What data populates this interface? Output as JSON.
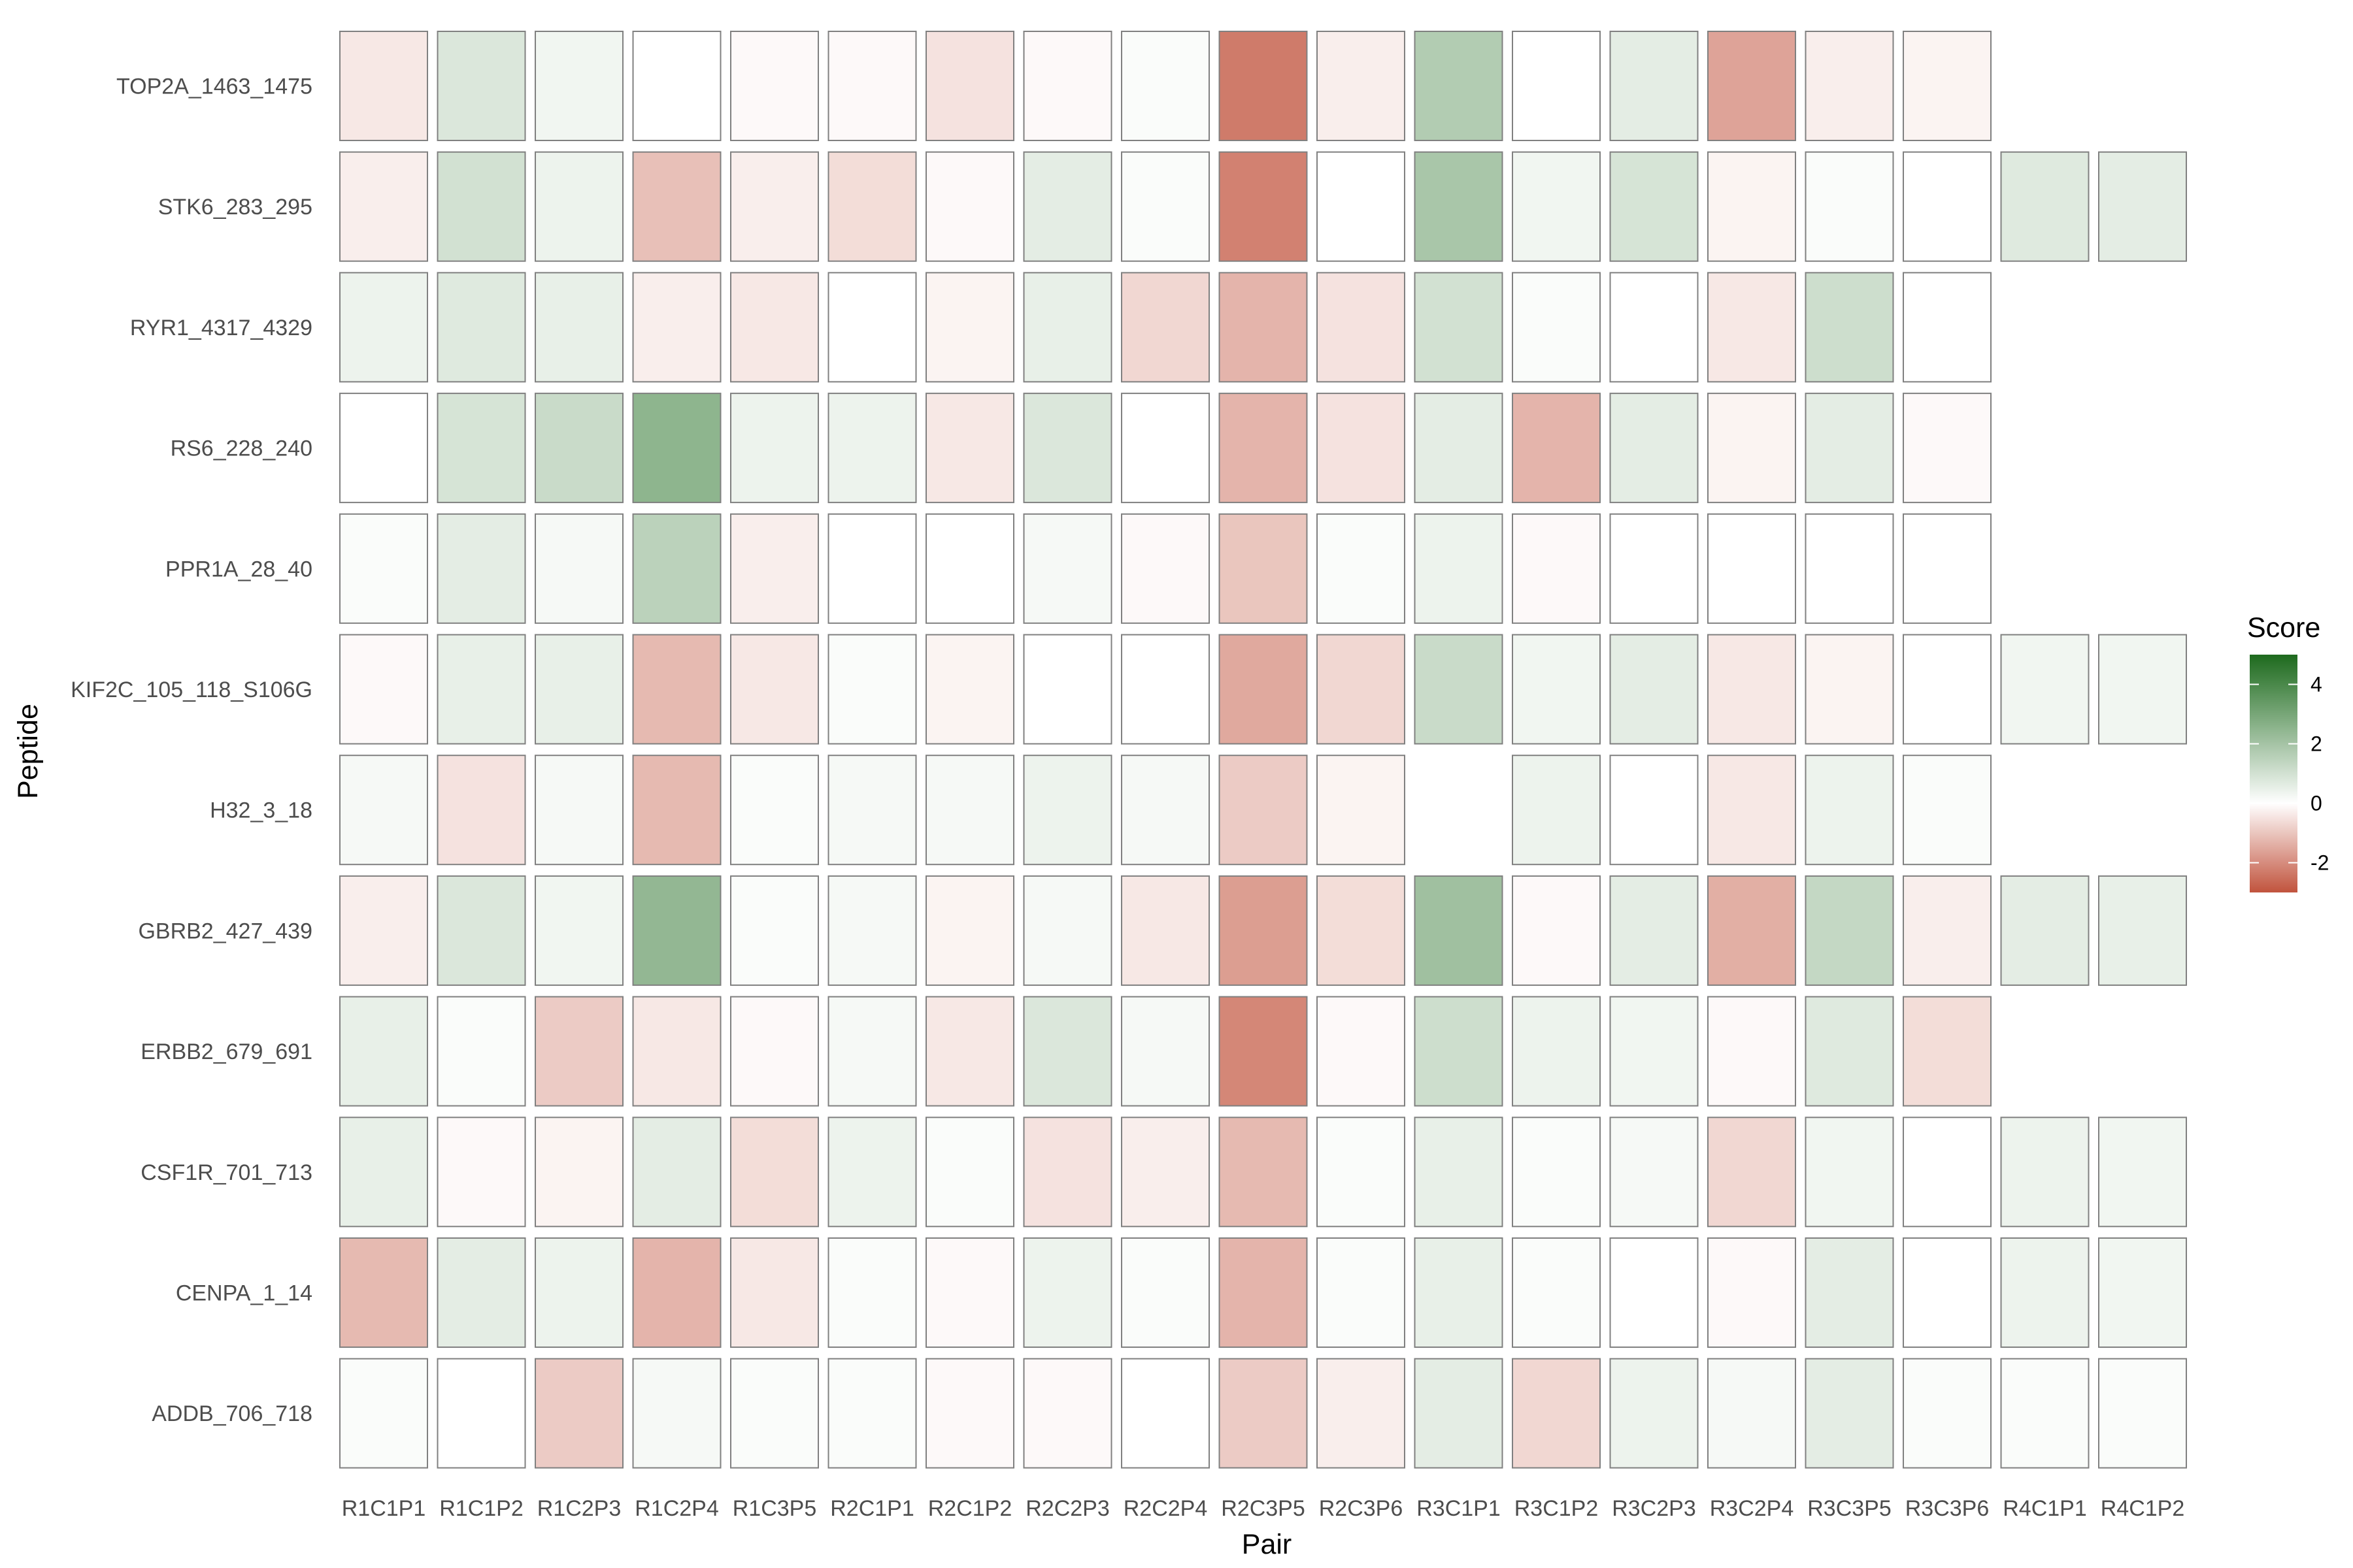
{
  "chart_data": {
    "type": "heatmap",
    "xlabel": "Pair",
    "ylabel": "Peptide",
    "x": [
      "R1C1P1",
      "R1C1P2",
      "R1C2P3",
      "R1C2P4",
      "R1C3P5",
      "R2C1P1",
      "R2C1P2",
      "R2C2P3",
      "R2C2P4",
      "R2C3P5",
      "R2C3P6",
      "R3C1P1",
      "R3C1P2",
      "R3C2P3",
      "R3C2P4",
      "R3C3P5",
      "R3C3P6",
      "R4C1P1",
      "R4C1P2"
    ],
    "y": [
      "TOP2A_1463_1475",
      "STK6_283_295",
      "RYR1_4317_4329",
      "RS6_228_240",
      "PPR1A_28_40",
      "KIF2C_105_118_S106G",
      "H32_3_18",
      "GBRB2_427_439",
      "ERBB2_679_691",
      "CSF1R_701_713",
      "CENPA_1_14",
      "ADDB_706_718"
    ],
    "values": [
      [
        -0.4,
        0.8,
        0.3,
        0.0,
        -0.1,
        -0.1,
        -0.5,
        -0.1,
        0.1,
        -2.3,
        -0.3,
        1.7,
        0.0,
        0.6,
        -1.6,
        -0.3,
        -0.2,
        null,
        null
      ],
      [
        -0.3,
        1.0,
        0.4,
        -1.1,
        -0.3,
        -0.6,
        -0.1,
        0.6,
        0.1,
        -2.2,
        0.0,
        1.9,
        0.3,
        0.9,
        -0.2,
        0.1,
        0.0,
        0.7,
        0.6
      ],
      [
        0.4,
        0.7,
        0.5,
        -0.3,
        -0.4,
        0.0,
        -0.2,
        0.5,
        -0.7,
        -1.3,
        -0.5,
        1.0,
        0.1,
        0.0,
        -0.4,
        1.1,
        0.0,
        null,
        null
      ],
      [
        0.0,
        0.9,
        1.2,
        2.5,
        0.4,
        0.4,
        -0.4,
        0.8,
        0.0,
        -1.3,
        -0.5,
        0.6,
        -1.3,
        0.6,
        -0.2,
        0.6,
        -0.1,
        null,
        null
      ],
      [
        0.1,
        0.6,
        0.2,
        1.5,
        -0.3,
        0.0,
        0.0,
        0.2,
        -0.1,
        -1.0,
        0.1,
        0.4,
        -0.1,
        0.0,
        0.0,
        0.0,
        0.0,
        null,
        null
      ],
      [
        -0.1,
        0.5,
        0.5,
        -1.2,
        -0.4,
        0.1,
        -0.2,
        0.0,
        0.0,
        -1.5,
        -0.7,
        1.2,
        0.3,
        0.6,
        -0.4,
        -0.2,
        0.0,
        0.3,
        0.3
      ],
      [
        0.2,
        -0.5,
        0.2,
        -1.2,
        0.1,
        0.2,
        0.2,
        0.4,
        0.2,
        -0.9,
        -0.2,
        null,
        0.4,
        0.0,
        -0.4,
        0.4,
        0.1,
        null,
        null
      ],
      [
        -0.3,
        0.8,
        0.3,
        2.4,
        0.1,
        0.2,
        -0.2,
        0.2,
        -0.4,
        -1.7,
        -0.6,
        2.1,
        -0.1,
        0.6,
        -1.4,
        1.3,
        -0.3,
        0.6,
        0.5
      ],
      [
        0.5,
        0.1,
        -0.9,
        -0.4,
        -0.1,
        0.2,
        -0.4,
        0.8,
        0.2,
        -2.1,
        -0.1,
        1.1,
        0.4,
        0.3,
        -0.1,
        0.7,
        -0.6,
        null,
        null
      ],
      [
        0.5,
        -0.1,
        -0.2,
        0.6,
        -0.6,
        0.4,
        0.1,
        -0.5,
        -0.3,
        -1.2,
        0.1,
        0.5,
        0.1,
        0.2,
        -0.7,
        0.3,
        0.0,
        0.4,
        0.3
      ],
      [
        -1.2,
        0.6,
        0.4,
        -1.3,
        -0.4,
        0.1,
        -0.1,
        0.4,
        0.1,
        -1.3,
        0.1,
        0.5,
        0.1,
        0.0,
        -0.1,
        0.6,
        0.0,
        0.4,
        0.3
      ],
      [
        0.1,
        0.0,
        -0.9,
        0.2,
        0.1,
        0.1,
        -0.1,
        -0.1,
        0.0,
        -0.9,
        -0.3,
        0.6,
        -0.7,
        0.4,
        0.2,
        0.6,
        0.1,
        0.1,
        0.1
      ]
    ],
    "colorbar": {
      "title": "Score",
      "range": [
        -3,
        5
      ],
      "ticks": [
        "4",
        "2",
        "0",
        "-2"
      ],
      "colors": {
        "low": "#c1533d",
        "mid": "#ffffff",
        "high": "#1d6a1d"
      }
    },
    "cell_border_color": "#808080",
    "grid": false
  }
}
